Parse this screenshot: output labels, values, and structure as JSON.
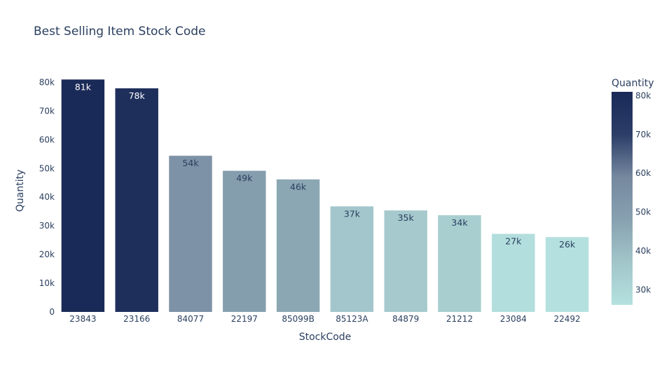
{
  "chart_data": {
    "type": "bar",
    "title": "Best Selling Item Stock Code",
    "xlabel": "StockCode",
    "ylabel": "Quantity",
    "categories": [
      "23843",
      "23166",
      "84077",
      "22197",
      "85099B",
      "85123A",
      "84879",
      "21212",
      "23084",
      "22492"
    ],
    "values": [
      80995,
      77916,
      54415,
      49183,
      46181,
      36782,
      35362,
      33693,
      27202,
      26076
    ],
    "data_labels": [
      "81k",
      "78k",
      "54k",
      "49k",
      "46k",
      "37k",
      "35k",
      "34k",
      "27k",
      "26k"
    ],
    "ylim": [
      0,
      85000
    ],
    "y_ticks": [
      0,
      10000,
      20000,
      30000,
      40000,
      50000,
      60000,
      70000,
      80000
    ],
    "y_tick_labels": [
      "0",
      "10k",
      "20k",
      "30k",
      "40k",
      "50k",
      "60k",
      "70k",
      "80k"
    ],
    "grid": false,
    "colorbar": {
      "title": "Quantity",
      "range": [
        26076,
        80995
      ],
      "ticks": [
        30000,
        40000,
        50000,
        60000,
        70000,
        80000
      ],
      "tick_labels": [
        "30k",
        "40k",
        "50k",
        "60k",
        "70k",
        "80k"
      ],
      "colorscale": [
        "#b4e1df",
        "#a2c5ca",
        "#87a1b0",
        "#75889f",
        "#2c3d68",
        "#1a2a58"
      ]
    }
  }
}
